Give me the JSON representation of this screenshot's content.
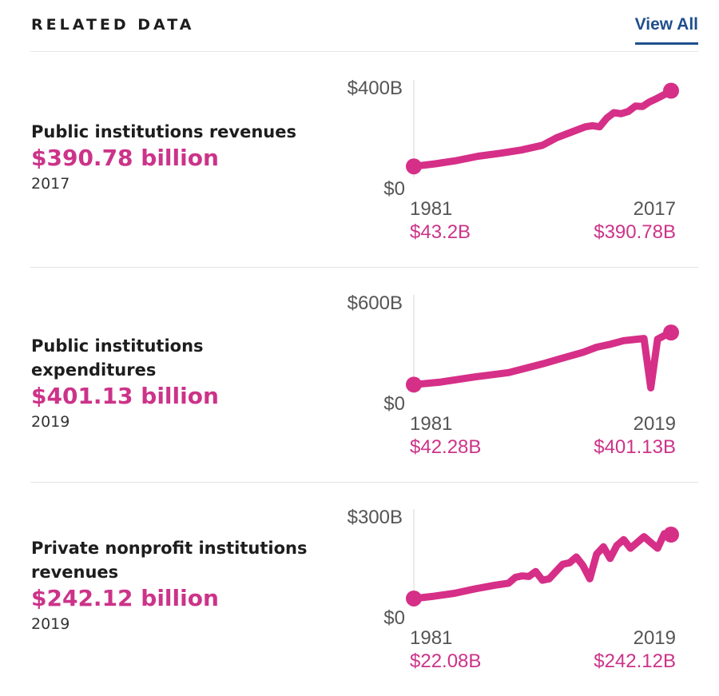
{
  "header": {
    "title": "RELATED DATA",
    "view_all": "View All"
  },
  "colors": {
    "line": "#d62f88",
    "value_text": "#cc3389",
    "axis_text": "#555555",
    "link": "#1f4e8c"
  },
  "rows": [
    {
      "label": "Public institutions revenues",
      "value": "$390.78 billion",
      "year": "2017",
      "chart_max_label": "$400B",
      "chart_min_label": "$0",
      "start_year": "1981",
      "end_year": "2017",
      "start_value": "$43.2B",
      "end_value": "$390.78B"
    },
    {
      "label": "Public institutions expenditures",
      "value": "$401.13 billion",
      "year": "2019",
      "chart_max_label": "$600B",
      "chart_min_label": "$0",
      "start_year": "1981",
      "end_year": "2019",
      "start_value": "$42.28B",
      "end_value": "$401.13B"
    },
    {
      "label": "Private nonprofit institutions revenues",
      "value": "$242.12 billion",
      "year": "2019",
      "chart_max_label": "$300B",
      "chart_min_label": "$0",
      "start_year": "1981",
      "end_year": "2019",
      "start_value": "$22.08B",
      "end_value": "$242.12B"
    }
  ],
  "chart_data": [
    {
      "type": "line",
      "title": "Public institutions revenues",
      "ylim": [
        0,
        400
      ],
      "x": [
        1981,
        1984,
        1987,
        1990,
        1993,
        1996,
        1999,
        2001,
        2003,
        2005,
        2006,
        2007,
        2008,
        2009,
        2010,
        2011,
        2012,
        2013,
        2014,
        2015,
        2016,
        2017
      ],
      "values": [
        43.2,
        55,
        70,
        90,
        103,
        118,
        140,
        175,
        200,
        225,
        230,
        225,
        265,
        290,
        285,
        295,
        320,
        318,
        340,
        355,
        372,
        390.78
      ],
      "start_label": "$43.2B",
      "end_label": "$390.78B"
    },
    {
      "type": "line",
      "title": "Public institutions expenditures",
      "ylim": [
        0,
        600
      ],
      "x": [
        1981,
        1985,
        1990,
        1995,
        2000,
        2003,
        2006,
        2008,
        2010,
        2012,
        2014,
        2015,
        2016,
        2017,
        2018,
        2019
      ],
      "values": [
        42.28,
        60,
        95,
        125,
        185,
        225,
        265,
        300,
        320,
        345,
        355,
        360,
        20,
        355,
        380,
        401.13
      ],
      "start_label": "$42.28B",
      "end_label": "$401.13B"
    },
    {
      "type": "line",
      "title": "Private nonprofit institutions revenues",
      "ylim": [
        0,
        300
      ],
      "x": [
        1981,
        1984,
        1987,
        1990,
        1993,
        1995,
        1996,
        1997,
        1998,
        1999,
        2000,
        2001,
        2002,
        2003,
        2004,
        2005,
        2006,
        2007,
        2008,
        2009,
        2010,
        2011,
        2012,
        2013,
        2014,
        2015,
        2016,
        2017,
        2018,
        2019
      ],
      "values": [
        22.08,
        30,
        40,
        55,
        68,
        75,
        95,
        100,
        98,
        115,
        85,
        90,
        115,
        140,
        145,
        165,
        135,
        90,
        175,
        200,
        160,
        205,
        225,
        195,
        215,
        235,
        215,
        195,
        245,
        242.12
      ],
      "start_label": "$22.08B",
      "end_label": "$242.12B"
    }
  ]
}
